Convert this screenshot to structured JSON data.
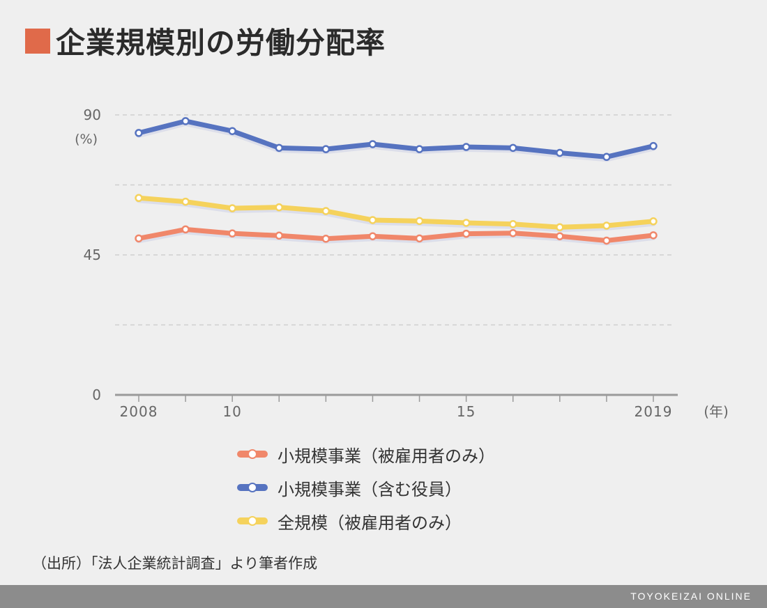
{
  "header": {
    "title": "企業規模別の労働分配率",
    "accent_color": "#e06a4a"
  },
  "chart_data": {
    "type": "line",
    "title": "企業規模別の労働分配率",
    "ylabel": "(%)",
    "xlabel": "(年)",
    "ylim": [
      0,
      90
    ],
    "y_ticks": [
      0,
      45,
      90
    ],
    "y_gridlines": [
      22.5,
      45,
      67.5,
      90
    ],
    "x": [
      2008,
      2009,
      2010,
      2011,
      2012,
      2013,
      2014,
      2015,
      2016,
      2017,
      2018,
      2019
    ],
    "x_tick_labels": {
      "2008": "2008",
      "2010": "10",
      "2015": "15",
      "2019": "2019"
    },
    "grid": true,
    "legend_position": "bottom",
    "series": [
      {
        "name": "小規模事業（被雇用者のみ）",
        "color": "#f0876a",
        "values": [
          50.3,
          53.2,
          51.9,
          51.2,
          50.2,
          51.0,
          50.3,
          51.8,
          52.0,
          51.0,
          49.6,
          51.3
        ]
      },
      {
        "name": "小規模事業（含む役員）",
        "color": "#5673c0",
        "values": [
          84.2,
          88.0,
          84.8,
          79.4,
          79.0,
          80.6,
          79.0,
          79.7,
          79.4,
          77.8,
          76.5,
          80.0
        ]
      },
      {
        "name": "全規模（被雇用者のみ）",
        "color": "#f5d25c",
        "values": [
          63.3,
          62.1,
          60.0,
          60.3,
          59.1,
          56.2,
          55.9,
          55.3,
          54.9,
          53.9,
          54.4,
          55.8
        ]
      }
    ]
  },
  "source": "（出所）「法人企業統計調査」より筆者作成",
  "footer": {
    "brand": "TOYOKEIZAI ONLINE"
  }
}
